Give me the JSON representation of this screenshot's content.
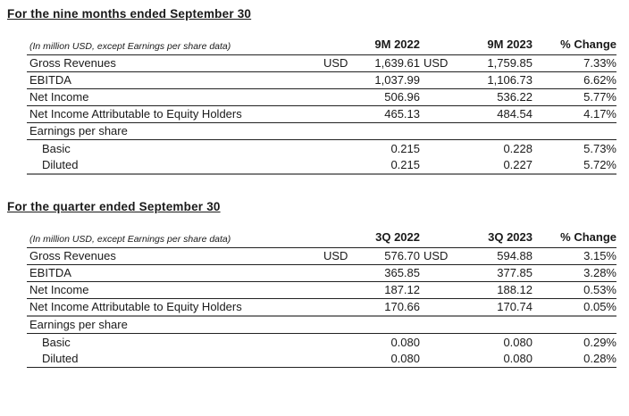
{
  "colors": {
    "text": "#1a1a1a",
    "thin_rule": "#212121",
    "thick_rule": "#7f7f7f",
    "background": "#ffffff"
  },
  "tables": [
    {
      "title": "For the nine months ended September 30",
      "caption": "(In million USD, except Earnings per share data)",
      "columns": [
        "9M 2022",
        "9M 2023",
        "% Change"
      ],
      "rows": [
        {
          "label": "Gross Revenues",
          "cur1": "USD",
          "v1": "1,639.61",
          "cur2": "USD",
          "v2": "1,759.85",
          "pct": "7.33%"
        },
        {
          "label": "EBITDA",
          "cur1": "",
          "v1": "1,037.99",
          "cur2": "",
          "v2": "1,106.73",
          "pct": "6.62%"
        },
        {
          "label": "Net Income",
          "cur1": "",
          "v1": "506.96",
          "cur2": "",
          "v2": "536.22",
          "pct": "5.77%"
        },
        {
          "label": "Net Income Attributable to Equity Holders",
          "cur1": "",
          "v1": "465.13",
          "cur2": "",
          "v2": "484.54",
          "pct": "4.17%"
        },
        {
          "label": "Earnings per share",
          "cur1": "",
          "v1": "",
          "cur2": "",
          "v2": "",
          "pct": ""
        },
        {
          "label": "Basic",
          "cur1": "",
          "v1": "0.215",
          "cur2": "",
          "v2": "0.228",
          "pct": "5.73%"
        },
        {
          "label": "Diluted",
          "cur1": "",
          "v1": "0.215",
          "cur2": "",
          "v2": "0.227",
          "pct": "5.72%"
        }
      ]
    },
    {
      "title": "For the quarter ended September 30",
      "caption": "(In million USD, except Earnings per share data)",
      "columns": [
        "3Q 2022",
        "3Q 2023",
        "% Change"
      ],
      "rows": [
        {
          "label": "Gross Revenues",
          "cur1": "USD",
          "v1": "576.70",
          "cur2": "USD",
          "v2": "594.88",
          "pct": "3.15%"
        },
        {
          "label": "EBITDA",
          "cur1": "",
          "v1": "365.85",
          "cur2": "",
          "v2": "377.85",
          "pct": "3.28%"
        },
        {
          "label": "Net Income",
          "cur1": "",
          "v1": "187.12",
          "cur2": "",
          "v2": "188.12",
          "pct": "0.53%"
        },
        {
          "label": "Net Income Attributable to Equity Holders",
          "cur1": "",
          "v1": "170.66",
          "cur2": "",
          "v2": "170.74",
          "pct": "0.05%"
        },
        {
          "label": "Earnings per share",
          "cur1": "",
          "v1": "",
          "cur2": "",
          "v2": "",
          "pct": ""
        },
        {
          "label": "Basic",
          "cur1": "",
          "v1": "0.080",
          "cur2": "",
          "v2": "0.080",
          "pct": "0.29%"
        },
        {
          "label": "Diluted",
          "cur1": "",
          "v1": "0.080",
          "cur2": "",
          "v2": "0.080",
          "pct": "0.28%"
        }
      ]
    }
  ]
}
